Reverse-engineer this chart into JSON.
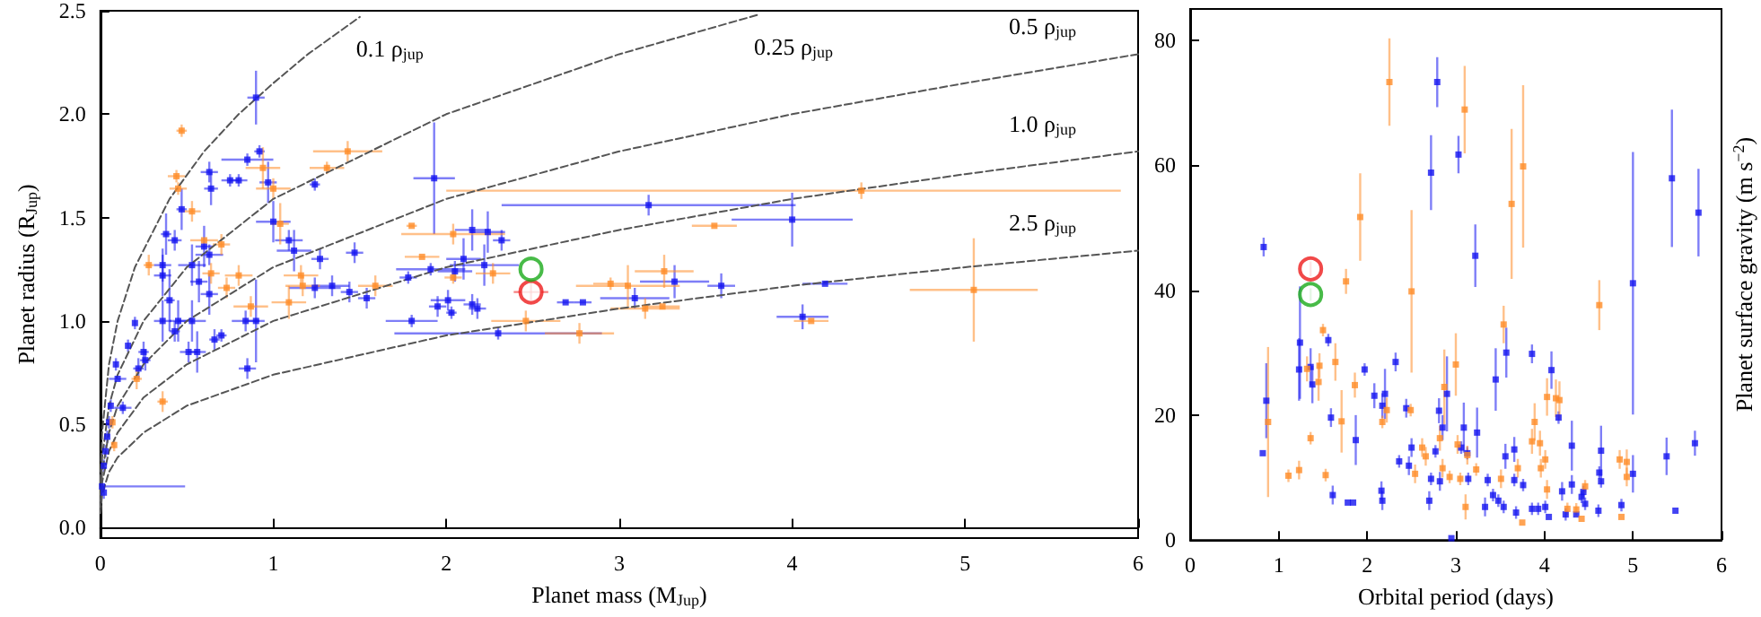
{
  "chart_data": [
    {
      "type": "scatter",
      "xlabel": "Planet mass (M$_{Jup}$)",
      "ylabel": "Planet radius (R$_{Jup}$)",
      "xlim": [
        0,
        6
      ],
      "ylim": [
        -0.05,
        2.5
      ],
      "xticks": [
        0,
        1,
        2,
        3,
        4,
        5,
        6
      ],
      "yticks": [
        {
          "value": 0,
          "label": "0.0"
        },
        {
          "value": 0.5,
          "label": "0.5"
        },
        {
          "value": 1,
          "label": "1.0"
        },
        {
          "value": 1.5,
          "label": "1.5"
        },
        {
          "value": 2,
          "label": "2.0"
        },
        {
          "value": 2.5,
          "label": "2.5"
        }
      ],
      "marker": "square",
      "series": [
        {
          "color": "#1414f0",
          "x": [
            0.9,
            0.92,
            0.85,
            0.63,
            0.64,
            0.75,
            0.8,
            0.97,
            1.24,
            1.93,
            0.47,
            1.0,
            0.38,
            0.43,
            0.6,
            0.63,
            0.53,
            0.36,
            1.09,
            1.12,
            1.27,
            1.47,
            2.1,
            2.15,
            2.24,
            2.32,
            2.05,
            1.78,
            1.91,
            2.22,
            1.24,
            1.34,
            1.44,
            1.54,
            1.95,
            2.01,
            2.15,
            2.18,
            2.03,
            1.8,
            2.3,
            0.36,
            0.4,
            0.36,
            0.45,
            0.53,
            0.43,
            0.51,
            0.56,
            0.66,
            0.7,
            0.85,
            0.25,
            0.26,
            0.22,
            0.2,
            0.16,
            0.09,
            0.1,
            0.13,
            0.06,
            0.05,
            0.04,
            0.03,
            0.02,
            0.01,
            0.02,
            0.57,
            0.63,
            0.84,
            0.9,
            3.17,
            4.0,
            3.32,
            3.59,
            3.09,
            4.19,
            4.06,
            2.69,
            2.79
          ],
          "values": [
            2.08,
            1.82,
            1.78,
            1.72,
            1.64,
            1.68,
            1.68,
            1.67,
            1.66,
            1.69,
            1.54,
            1.48,
            1.42,
            1.39,
            1.36,
            1.32,
            1.27,
            1.27,
            1.39,
            1.34,
            1.3,
            1.33,
            1.3,
            1.44,
            1.43,
            1.39,
            1.24,
            1.21,
            1.25,
            1.27,
            1.16,
            1.17,
            1.14,
            1.11,
            1.07,
            1.1,
            1.08,
            1.06,
            1.04,
            1.0,
            0.94,
            1.22,
            1.1,
            1.0,
            1.0,
            1.0,
            0.95,
            0.85,
            0.85,
            0.91,
            0.93,
            0.77,
            0.85,
            0.81,
            0.77,
            0.99,
            0.88,
            0.79,
            0.72,
            0.58,
            0.59,
            0.51,
            0.44,
            0.37,
            0.3,
            0.2,
            0.17,
            1.19,
            1.13,
            1.0,
            1.0,
            1.56,
            1.49,
            1.19,
            1.17,
            1.11,
            1.18,
            1.02,
            1.09,
            1.09
          ],
          "errors": [
            0.13,
            0.03,
            0.03,
            0.05,
            0.08,
            0.03,
            0.03,
            0.1,
            0.03,
            0.27,
            0.1,
            0.1,
            0.1,
            0.05,
            0.1,
            0.05,
            0.1,
            0.08,
            0.05,
            0.1,
            0.05,
            0.05,
            0.1,
            0.1,
            0.1,
            0.05,
            0.05,
            0.03,
            0.03,
            0.1,
            0.05,
            0.05,
            0.05,
            0.05,
            0.05,
            0.05,
            0.05,
            0.05,
            0.03,
            0.03,
            0.03,
            0.1,
            0.15,
            0.1,
            0.1,
            0.1,
            0.05,
            0.05,
            0.1,
            0.05,
            0.03,
            0.05,
            0.05,
            0.05,
            0.05,
            0.03,
            0.03,
            0.03,
            null,
            0.03,
            0.03,
            0.03,
            0.03,
            0.03,
            0.03,
            0.03,
            0.03,
            0.1,
            0.1,
            0.05,
            0.2,
            0.05,
            0.13,
            0.08,
            0.06,
            0.05,
            null,
            0.06,
            null,
            null
          ],
          "xerrors": [
            0.05,
            0.03,
            0.15,
            0.05,
            0.04,
            0.05,
            0.05,
            0.05,
            0.03,
            0.12,
            0.03,
            0.1,
            0.03,
            0.04,
            0.05,
            0.08,
            0.08,
            0.05,
            0.08,
            0.1,
            0.05,
            0.05,
            0.1,
            0.1,
            0.1,
            0.05,
            0.1,
            0.05,
            0.2,
            0.2,
            0.15,
            0.1,
            0.05,
            0.05,
            0.05,
            0.1,
            0.05,
            0.05,
            0.03,
            0.15,
            0.6,
            0.05,
            0.03,
            0.05,
            0.05,
            0.08,
            0.03,
            0.05,
            0.05,
            0.03,
            0.03,
            0.05,
            0.03,
            0.03,
            0.03,
            null,
            null,
            null,
            0.05,
            0.05,
            null,
            null,
            null,
            null,
            null,
            [
              0,
              0.49
            ],
            null,
            0.05,
            0.05,
            0.08,
            0.05,
            0.85,
            0.35,
            0.2,
            0.08,
            0.2,
            0.13,
            0.15,
            0.05,
            0.05
          ]
        },
        {
          "color": "#ff8c28",
          "x": [
            0.47,
            0.44,
            0.45,
            0.53,
            0.94,
            1.43,
            1.31,
            1.0,
            1.04,
            1.8,
            2.04,
            1.86,
            2.27,
            2.04,
            1.59,
            1.16,
            1.17,
            1.09,
            0.87,
            0.6,
            0.7,
            0.8,
            0.73,
            0.64,
            0.28,
            0.21,
            0.36,
            0.08,
            0.07,
            2.46,
            2.77,
            4.4,
            3.55,
            3.26,
            3.05,
            2.95,
            3.15,
            3.25,
            4.11,
            5.05
          ],
          "values": [
            1.92,
            1.7,
            1.64,
            1.53,
            1.74,
            1.82,
            1.74,
            1.64,
            1.47,
            1.46,
            1.42,
            1.31,
            1.23,
            1.21,
            1.17,
            1.22,
            1.17,
            1.09,
            1.07,
            1.39,
            1.37,
            1.22,
            1.16,
            1.23,
            1.27,
            0.72,
            0.61,
            0.4,
            0.51,
            1.0,
            0.94,
            1.63,
            1.46,
            1.24,
            1.17,
            1.18,
            1.06,
            1.07,
            1.0,
            1.15
          ],
          "errors": [
            0.03,
            0.03,
            0.03,
            0.05,
            0.1,
            0.05,
            0.03,
            0.05,
            0.1,
            null,
            0.05,
            null,
            0.05,
            0.03,
            0.05,
            0.05,
            0.05,
            0.08,
            0.05,
            null,
            0.05,
            0.05,
            0.05,
            0.05,
            0.05,
            0.05,
            0.05,
            0.03,
            0.03,
            0.05,
            0.05,
            0.04,
            null,
            0.08,
            0.1,
            0.03,
            0.05,
            null,
            null,
            0.25
          ],
          "xerrors": [
            0.03,
            0.05,
            0.05,
            0.05,
            0.1,
            0.2,
            0.1,
            0.1,
            0.05,
            0.03,
            0.3,
            0.1,
            0.1,
            0.05,
            0.1,
            0.1,
            0.1,
            0.1,
            0.1,
            0.08,
            0.05,
            0.08,
            0.05,
            0.05,
            0.03,
            0.03,
            0.03,
            null,
            null,
            0.2,
            0.2,
            [
              2.0,
              5.9
            ],
            0.13,
            0.17,
            0.3,
            0.1,
            0.2,
            0.1,
            0.1,
            0.37
          ]
        },
        {
          "color": "#ee1c1c",
          "marker": "circle",
          "x": [
            2.49
          ],
          "values": [
            1.14
          ],
          "errors": [
            0.05
          ],
          "xerrors": [
            0.1
          ]
        },
        {
          "color": "#1aaa1a",
          "marker": "circle",
          "x": [
            2.49
          ],
          "values": [
            1.25
          ]
        },
        {
          "name": "0.1 ρ$_{jup}$",
          "type": "line",
          "line_style": "dashed",
          "color": "#555555",
          "marker": "none",
          "x": [
            0.001,
            0.01,
            0.05,
            0.1,
            0.2,
            0.4,
            0.6,
            0.8,
            1.0,
            1.2,
            1.5
          ],
          "values": [
            0.22,
            0.46,
            0.79,
            1,
            1.26,
            1.59,
            1.82,
            2,
            2.15,
            2.29,
            2.47
          ]
        },
        {
          "name": "0.25 ρ$_{jup}$",
          "type": "line",
          "line_style": "dashed",
          "color": "#555555",
          "marker": "none",
          "x": [
            0.001,
            0.01,
            0.05,
            0.1,
            0.25,
            0.5,
            1,
            2,
            3,
            3.8
          ],
          "values": [
            0.16,
            0.34,
            0.59,
            0.74,
            1,
            1.26,
            1.59,
            2,
            2.29,
            2.48
          ]
        },
        {
          "name": "0.5 ρ$_{jup}$",
          "type": "line",
          "line_style": "dashed",
          "color": "#555555",
          "marker": "none",
          "x": [
            0.001,
            0.01,
            0.05,
            0.1,
            0.25,
            0.5,
            1,
            2,
            3,
            4,
            5,
            6
          ],
          "values": [
            0.13,
            0.27,
            0.46,
            0.59,
            0.79,
            1,
            1.26,
            1.59,
            1.82,
            2,
            2.15,
            2.29
          ]
        },
        {
          "name": "1.0 ρ$_{jup}$",
          "type": "line",
          "line_style": "dashed",
          "color": "#555555",
          "marker": "none",
          "x": [
            0.001,
            0.01,
            0.05,
            0.1,
            0.25,
            0.5,
            1,
            2,
            3,
            4,
            5,
            6
          ],
          "values": [
            0.1,
            0.22,
            0.37,
            0.46,
            0.63,
            0.79,
            1,
            1.26,
            1.44,
            1.59,
            1.71,
            1.82
          ]
        },
        {
          "name": "2.5 ρ$_{jup}$",
          "type": "line",
          "line_style": "dashed",
          "color": "#555555",
          "marker": "none",
          "x": [
            0.001,
            0.01,
            0.05,
            0.1,
            0.25,
            0.5,
            1,
            2,
            3,
            4,
            5,
            6
          ],
          "values": [
            0.07,
            0.16,
            0.27,
            0.34,
            0.46,
            0.59,
            0.74,
            0.93,
            1.06,
            1.17,
            1.26,
            1.34
          ]
        }
      ]
    },
    {
      "type": "scatter",
      "xlabel": "Orbital period (days)",
      "ylabel": "Planet surface gravity (m s$^{−2}$)",
      "xlim": [
        0,
        6
      ],
      "ylim": [
        0,
        85
      ],
      "xticks": [
        0,
        1,
        2,
        3,
        4,
        5,
        6
      ],
      "yticks": [
        0,
        20,
        40,
        60,
        80
      ],
      "marker": "square",
      "series": [
        {
          "color": "#1414f0",
          "x": [
            0.83,
            0.86,
            0.82,
            1.24,
            1.23,
            1.36,
            1.38,
            1.56,
            1.59,
            1.61,
            1.78,
            1.84,
            1.87,
            1.97,
            2.08,
            2.2,
            2.17,
            2.16,
            2.17,
            2.32,
            2.36,
            2.44,
            2.47,
            2.5,
            2.72,
            2.79,
            2.7,
            2.72,
            2.77,
            2.81,
            2.85,
            2.9,
            2.82,
            3.03,
            3.09,
            3.06,
            3.13,
            3.14,
            3.22,
            3.24,
            3.33,
            3.36,
            3.42,
            3.45,
            3.48,
            3.54,
            3.57,
            3.56,
            3.66,
            3.66,
            3.68,
            3.76,
            3.86,
            3.86,
            3.93,
            4.01,
            4.05,
            4.08,
            4.16,
            4.2,
            4.24,
            4.31,
            4.31,
            4.36,
            4.42,
            4.44,
            4.46,
            4.62,
            4.61,
            4.64,
            4.64,
            4.87,
            5.0,
            5.0,
            5.38,
            5.44,
            5.48,
            5.7,
            5.74,
            2.95
          ],
          "values": [
            46.9,
            22.3,
            13.9,
            31.6,
            27.3,
            27.7,
            24.9,
            32.0,
            19.6,
            7.2,
            6.0,
            6.0,
            16.0,
            27.3,
            23.1,
            23.4,
            21.5,
            7.9,
            6.3,
            28.5,
            12.6,
            21.1,
            11.9,
            14.8,
            58.8,
            73.3,
            6.3,
            9.8,
            14.2,
            20.7,
            18.0,
            23.4,
            9.4,
            61.7,
            18.0,
            14.8,
            13.9,
            9.8,
            45.5,
            17.2,
            5.3,
            9.6,
            7.2,
            25.7,
            6.3,
            5.3,
            30.0,
            13.4,
            14.5,
            9.6,
            4.4,
            8.8,
            5.0,
            29.8,
            5.0,
            5.3,
            3.7,
            27.2,
            19.6,
            7.8,
            4.1,
            15.1,
            8.9,
            4.1,
            6.9,
            7.7,
            5.8,
            10.8,
            4.7,
            14.3,
            9.4,
            5.6,
            41.1,
            10.6,
            13.4,
            57.9,
            4.7,
            15.5,
            52.4,
            0.3
          ],
          "errors": [
            1.5,
            6,
            null,
            9,
            5,
            3,
            3,
            1,
            1.5,
            1.5,
            null,
            null,
            4,
            1,
            2,
            4,
            2,
            1.5,
            1.5,
            1.5,
            1,
            1.5,
            1.5,
            1.5,
            6,
            4,
            1.5,
            1,
            1,
            2,
            2,
            6,
            1.5,
            3,
            4,
            1,
            1,
            1,
            5,
            4,
            1.5,
            1,
            1,
            5,
            1,
            1,
            4,
            2,
            2,
            1,
            1,
            1,
            1,
            1.5,
            1,
            1,
            null,
            3,
            1,
            1.5,
            1,
            4,
            1.5,
            null,
            1,
            1,
            1,
            1,
            1,
            4,
            1,
            1,
            21,
            3,
            3,
            11,
            null,
            2,
            7,
            null
          ]
        },
        {
          "color": "#ff8c28",
          "x": [
            2.25,
            3.1,
            3.76,
            3.63,
            1.92,
            1.76,
            2.5,
            4.62,
            1.5,
            0.88,
            1.11,
            1.23,
            1.36,
            1.32,
            1.46,
            1.45,
            1.53,
            1.64,
            1.71,
            1.86,
            2.17,
            2.22,
            2.49,
            2.54,
            2.62,
            2.66,
            2.82,
            2.85,
            2.87,
            3.0,
            2.93,
            3.02,
            3.05,
            3.11,
            3.13,
            3.23,
            3.54,
            3.51,
            3.7,
            3.75,
            3.86,
            3.89,
            3.96,
            3.95,
            4.01,
            4.03,
            4.03,
            4.13,
            4.17,
            4.26,
            4.36,
            4.42,
            4.46,
            4.85,
            4.87,
            4.93,
            4.93
          ],
          "values": [
            73.3,
            68.9,
            59.8,
            53.8,
            51.7,
            41.4,
            39.8,
            37.6,
            33.6,
            18.9,
            10.3,
            11.2,
            16.3,
            27.4,
            27.9,
            25.3,
            10.4,
            28.5,
            19.0,
            24.8,
            18.9,
            20.8,
            20.8,
            10.6,
            14.8,
            13.4,
            16.3,
            11.5,
            24.5,
            28.1,
            10.1,
            15.3,
            9.8,
            5.3,
            13.6,
            11.3,
            34.5,
            9.8,
            11.5,
            2.8,
            15.8,
            18.9,
            11.5,
            15.5,
            12.9,
            22.9,
            8.1,
            22.7,
            22.4,
            5.0,
            4.9,
            3.4,
            8.6,
            12.9,
            3.7,
            12.5,
            10.1
          ],
          "errors": [
            7,
            7,
            13,
            12,
            7,
            2,
            13,
            4,
            1,
            12,
            1,
            1.5,
            1,
            2,
            2,
            3,
            1,
            3,
            5,
            2,
            1,
            2,
            1,
            1.5,
            1.5,
            1.5,
            2,
            1.5,
            6,
            5,
            1,
            1.5,
            1,
            2,
            1.5,
            1,
            3,
            1.5,
            1.5,
            null,
            2,
            3,
            1.5,
            2,
            1.5,
            3,
            1.5,
            3,
            3,
            1,
            1,
            null,
            1,
            1.5,
            null,
            2,
            1.5
          ]
        },
        {
          "color": "#ee1c1c",
          "marker": "circle",
          "x": [
            1.36
          ],
          "values": [
            43.4
          ],
          "errors": [
            1.2
          ]
        },
        {
          "color": "#1aaa1a",
          "marker": "circle",
          "x": [
            1.36
          ],
          "values": [
            39.3
          ],
          "errors": [
            1
          ]
        }
      ]
    }
  ]
}
